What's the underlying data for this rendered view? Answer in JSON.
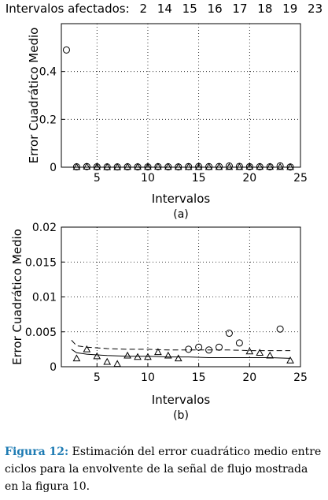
{
  "header": {
    "label": "Intervalos afectados:",
    "values": [
      "2",
      "14",
      "15",
      "16",
      "17",
      "18",
      "19",
      "23"
    ]
  },
  "chart_data": [
    {
      "type": "scatter",
      "panel": "(a)",
      "xlabel": "Intervalos",
      "ylabel": "Error Cuadrático Medio",
      "xlim": [
        1.5,
        25
      ],
      "ylim": [
        0,
        0.6
      ],
      "xticks": [
        5,
        10,
        15,
        20,
        25
      ],
      "yticks": [
        0,
        0.2,
        0.4
      ],
      "ytick_labels": [
        "0",
        "0.2",
        "0.4"
      ],
      "grid": "dotted",
      "series": [
        {
          "marker": "circle",
          "x": [
            2,
            3,
            4,
            5,
            6,
            7,
            8,
            9,
            10,
            11,
            12,
            13,
            14,
            15,
            16,
            17,
            18,
            19,
            20,
            21,
            22,
            23,
            24
          ],
          "values": [
            0.49,
            0.0015,
            0.0025,
            0.0018,
            0.0012,
            0.0011,
            0.0016,
            0.0014,
            0.0013,
            0.0021,
            0.0016,
            0.0013,
            0.0025,
            0.0028,
            0.0024,
            0.0028,
            0.0049,
            0.0035,
            0.0022,
            0.002,
            0.0018,
            0.0054,
            0.001
          ]
        },
        {
          "marker": "triangle",
          "x": [
            3,
            4,
            5,
            6,
            7,
            8,
            9,
            10,
            11,
            12,
            13,
            14,
            15,
            16,
            17,
            18,
            19,
            20,
            21,
            22,
            23,
            24
          ],
          "values": [
            0.001,
            0.0025,
            0.0015,
            0.0008,
            0.0004,
            0.0016,
            0.0014,
            0.0013,
            0.0021,
            0.0016,
            0.0011,
            0.0012,
            0.0012,
            0.0012,
            0.0012,
            0.0012,
            0.0012,
            0.0022,
            0.002,
            0.0017,
            0.0012,
            0.0009
          ]
        }
      ]
    },
    {
      "type": "scatter",
      "panel": "(b)",
      "xlabel": "Intervalos",
      "ylabel": "Error Cuadrático Medio",
      "xlim": [
        1.5,
        25
      ],
      "ylim": [
        0,
        0.02
      ],
      "xticks": [
        5,
        10,
        15,
        20,
        25
      ],
      "xtick_labels": [
        "5",
        "10",
        "15",
        "20",
        "25"
      ],
      "yticks": [
        0,
        0.005,
        0.01,
        0.015,
        0.02
      ],
      "ytick_labels": [
        "0",
        "0.005",
        "0.01",
        "0.015",
        "0.02"
      ],
      "grid": "dotted",
      "series": [
        {
          "marker": "circle",
          "x": [
            14,
            15,
            16,
            17,
            18,
            19,
            23
          ],
          "values": [
            0.0025,
            0.0028,
            0.0024,
            0.0028,
            0.0048,
            0.0034,
            0.0054
          ]
        },
        {
          "marker": "triangle",
          "x": [
            3,
            4,
            5,
            6,
            7,
            8,
            9,
            10,
            11,
            12,
            13,
            20,
            21,
            22,
            24
          ],
          "values": [
            0.0012,
            0.0025,
            0.0015,
            0.0007,
            0.0004,
            0.0016,
            0.0014,
            0.0014,
            0.0021,
            0.0016,
            0.0012,
            0.0022,
            0.002,
            0.0016,
            0.0009
          ]
        },
        {
          "line": "dashed",
          "x": [
            2.5,
            3,
            4,
            5,
            6,
            8,
            10,
            12,
            14,
            16,
            18,
            20,
            22,
            24
          ],
          "values": [
            0.0038,
            0.003,
            0.0028,
            0.0027,
            0.0026,
            0.0025,
            0.0025,
            0.0024,
            0.0024,
            0.0024,
            0.0024,
            0.0023,
            0.0023,
            0.0023
          ]
        },
        {
          "line": "solid",
          "x": [
            2.5,
            3,
            4,
            5,
            6,
            8,
            10,
            12,
            14,
            16,
            18,
            20,
            22,
            24
          ],
          "values": [
            0.0025,
            0.002,
            0.0018,
            0.0017,
            0.0016,
            0.0015,
            0.0015,
            0.0014,
            0.0014,
            0.0013,
            0.0013,
            0.0013,
            0.0013,
            0.0012
          ]
        }
      ]
    }
  ],
  "caption": {
    "label": "Figura 12:",
    "text": "Estimación del error cuadrático medio entre ciclos para la envolvente de la señal de flujo mostrada en la figura 10."
  }
}
